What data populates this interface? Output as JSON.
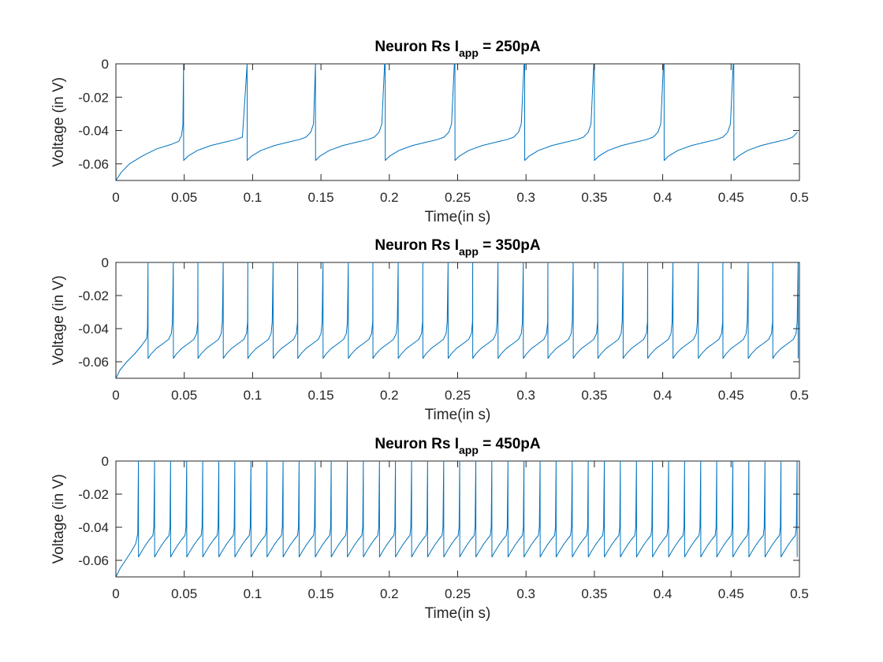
{
  "chart_data": [
    {
      "type": "line",
      "title_main": "Neuron Rs I",
      "title_sub": "app",
      "title_tail": " = 250pA",
      "xlabel": "Time(in s)",
      "ylabel": "Voltage (in V)",
      "xlim": [
        0,
        0.5
      ],
      "ylim": [
        -0.07,
        0
      ],
      "xticks": [
        0,
        0.05,
        0.1,
        0.15,
        0.2,
        0.25,
        0.3,
        0.35,
        0.4,
        0.45,
        0.5
      ],
      "xtick_labels": [
        "0",
        "0.05",
        "0.1",
        "0.15",
        "0.2",
        "0.25",
        "0.3",
        "0.35",
        "0.4",
        "0.45",
        "0.5"
      ],
      "yticks": [
        0,
        -0.02,
        -0.04,
        -0.06
      ],
      "ytick_labels": [
        "0",
        "-0.02",
        "-0.04",
        "-0.06"
      ],
      "grid": false,
      "color": "#0072BD",
      "series": [
        {
          "v_rest": -0.07,
          "v_reset": -0.058,
          "v_peak": 0,
          "spike_times": [
            0.0495,
            0.096,
            0.146,
            0.197,
            0.248,
            0.299,
            0.35,
            0.401,
            0.452
          ],
          "trajectory_after_reset": [
            [
              0,
              -0.058
            ],
            [
              0.003,
              -0.0555
            ],
            [
              0.01,
              -0.052
            ],
            [
              0.02,
              -0.049
            ],
            [
              0.03,
              -0.047
            ],
            [
              0.038,
              -0.0455
            ],
            [
              0.043,
              -0.044
            ],
            [
              0.0465,
              -0.041
            ],
            [
              0.0485,
              -0.036
            ],
            [
              0.0505,
              0
            ]
          ],
          "trajectory_from_rest": [
            [
              0,
              -0.07
            ],
            [
              0.004,
              -0.065
            ],
            [
              0.01,
              -0.06
            ],
            [
              0.02,
              -0.055
            ],
            [
              0.03,
              -0.051
            ],
            [
              0.04,
              -0.0485
            ],
            [
              0.046,
              -0.0465
            ],
            [
              0.048,
              -0.043
            ],
            [
              0.049,
              -0.037
            ],
            [
              0.0495,
              0
            ]
          ]
        }
      ]
    },
    {
      "type": "line",
      "title_main": "Neuron Rs I",
      "title_sub": "app",
      "title_tail": " = 350pA",
      "xlabel": "Time(in s)",
      "ylabel": "Voltage (in V)",
      "xlim": [
        0,
        0.5
      ],
      "ylim": [
        -0.07,
        0
      ],
      "xticks": [
        0,
        0.05,
        0.1,
        0.15,
        0.2,
        0.25,
        0.3,
        0.35,
        0.4,
        0.45,
        0.5
      ],
      "xtick_labels": [
        "0",
        "0.05",
        "0.1",
        "0.15",
        "0.2",
        "0.25",
        "0.3",
        "0.35",
        "0.4",
        "0.45",
        "0.5"
      ],
      "yticks": [
        0,
        -0.02,
        -0.04,
        -0.06
      ],
      "ytick_labels": [
        "0",
        "-0.02",
        "-0.04",
        "-0.06"
      ],
      "grid": false,
      "color": "#0072BD",
      "series": [
        {
          "v_rest": -0.07,
          "v_reset": -0.058,
          "v_peak": 0,
          "spike_times": [
            0.0235,
            0.042,
            0.06,
            0.0785,
            0.0965,
            0.115,
            0.133,
            0.1515,
            0.17,
            0.188,
            0.2065,
            0.2245,
            0.243,
            0.261,
            0.2795,
            0.298,
            0.316,
            0.3345,
            0.3525,
            0.371,
            0.389,
            0.4075,
            0.426,
            0.444,
            0.4625,
            0.4805,
            0.499
          ],
          "trajectory_after_reset": [
            [
              0,
              -0.058
            ],
            [
              0.002,
              -0.0555
            ],
            [
              0.006,
              -0.052
            ],
            [
              0.011,
              -0.049
            ],
            [
              0.015,
              -0.0465
            ],
            [
              0.017,
              -0.043
            ],
            [
              0.0178,
              -0.036
            ],
            [
              0.0185,
              0
            ]
          ],
          "trajectory_from_rest": [
            [
              0,
              -0.07
            ],
            [
              0.003,
              -0.065
            ],
            [
              0.008,
              -0.06
            ],
            [
              0.014,
              -0.055
            ],
            [
              0.019,
              -0.05
            ],
            [
              0.0225,
              -0.046
            ],
            [
              0.0231,
              -0.04
            ],
            [
              0.0235,
              0
            ]
          ]
        }
      ]
    },
    {
      "type": "line",
      "title_main": "Neuron Rs I",
      "title_sub": "app",
      "title_tail": " = 450pA",
      "xlabel": "Time(in s)",
      "ylabel": "Voltage (in V)",
      "xlim": [
        0,
        0.5
      ],
      "ylim": [
        -0.07,
        0
      ],
      "xticks": [
        0,
        0.05,
        0.1,
        0.15,
        0.2,
        0.25,
        0.3,
        0.35,
        0.4,
        0.45,
        0.5
      ],
      "xtick_labels": [
        "0",
        "0.05",
        "0.1",
        "0.15",
        "0.2",
        "0.25",
        "0.3",
        "0.35",
        "0.4",
        "0.45",
        "0.5"
      ],
      "yticks": [
        0,
        -0.02,
        -0.04,
        -0.06
      ],
      "ytick_labels": [
        "0",
        "-0.02",
        "-0.04",
        "-0.06"
      ],
      "grid": false,
      "color": "#0072BD",
      "series": [
        {
          "v_rest": -0.07,
          "v_reset": -0.058,
          "v_peak": 0,
          "spike_times": [
            0.0165,
            0.0283,
            0.04,
            0.0518,
            0.0635,
            0.0753,
            0.087,
            0.0988,
            0.1105,
            0.1223,
            0.134,
            0.1458,
            0.1575,
            0.1693,
            0.181,
            0.1928,
            0.2045,
            0.2163,
            0.228,
            0.2398,
            0.2515,
            0.2633,
            0.275,
            0.2868,
            0.2985,
            0.3103,
            0.322,
            0.3338,
            0.3455,
            0.3573,
            0.369,
            0.3808,
            0.3925,
            0.4043,
            0.416,
            0.4278,
            0.4395,
            0.4513,
            0.463,
            0.4748,
            0.4865,
            0.4983
          ],
          "trajectory_after_reset": [
            [
              0,
              -0.058
            ],
            [
              0.002,
              -0.055
            ],
            [
              0.005,
              -0.051
            ],
            [
              0.008,
              -0.0475
            ],
            [
              0.0105,
              -0.045
            ],
            [
              0.0112,
              -0.04
            ],
            [
              0.0118,
              0
            ]
          ],
          "trajectory_from_rest": [
            [
              0,
              -0.07
            ],
            [
              0.003,
              -0.065
            ],
            [
              0.007,
              -0.06
            ],
            [
              0.011,
              -0.055
            ],
            [
              0.0145,
              -0.05
            ],
            [
              0.016,
              -0.044
            ],
            [
              0.0165,
              0
            ]
          ]
        }
      ]
    }
  ]
}
